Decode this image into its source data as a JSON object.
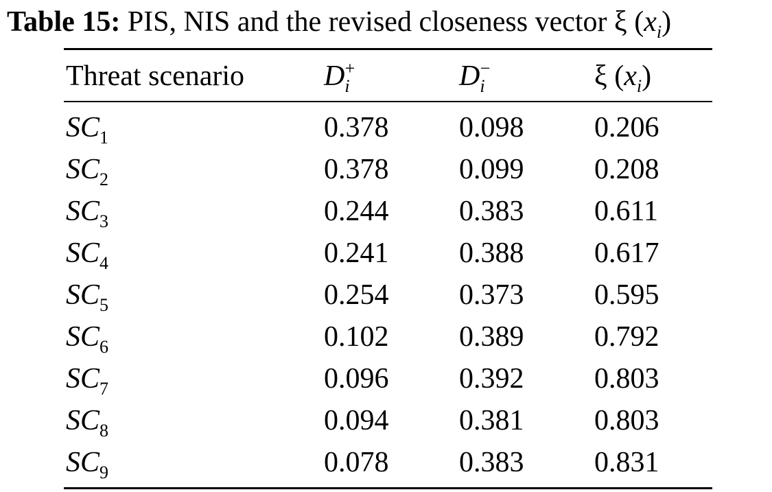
{
  "caption": {
    "label": "Table 15:",
    "text": "PIS, NIS and the revised closeness vector",
    "symbol": "ξ",
    "paren_open": "(",
    "var": "x",
    "var_sub": "i",
    "paren_close": ")"
  },
  "table": {
    "headers": {
      "scenario": "Threat scenario",
      "d_plus_base": "D",
      "d_plus_sub": "i",
      "d_plus_sup": "+",
      "d_minus_base": "D",
      "d_minus_sub": "i",
      "d_minus_sup": "−",
      "xi_symbol": "ξ",
      "xi_paren_open": "(",
      "xi_var": "x",
      "xi_var_sub": "i",
      "xi_paren_close": ")"
    },
    "rows": [
      {
        "sc": "SC",
        "sc_sub": "1",
        "d_plus": "0.378",
        "d_minus": "0.098",
        "xi": "0.206"
      },
      {
        "sc": "SC",
        "sc_sub": "2",
        "d_plus": "0.378",
        "d_minus": "0.099",
        "xi": "0.208"
      },
      {
        "sc": "SC",
        "sc_sub": "3",
        "d_plus": "0.244",
        "d_minus": "0.383",
        "xi": "0.611"
      },
      {
        "sc": "SC",
        "sc_sub": "4",
        "d_plus": "0.241",
        "d_minus": "0.388",
        "xi": "0.617"
      },
      {
        "sc": "SC",
        "sc_sub": "5",
        "d_plus": "0.254",
        "d_minus": "0.373",
        "xi": "0.595"
      },
      {
        "sc": "SC",
        "sc_sub": "6",
        "d_plus": "0.102",
        "d_minus": "0.389",
        "xi": "0.792"
      },
      {
        "sc": "SC",
        "sc_sub": "7",
        "d_plus": "0.096",
        "d_minus": "0.392",
        "xi": "0.803"
      },
      {
        "sc": "SC",
        "sc_sub": "8",
        "d_plus": "0.094",
        "d_minus": "0.381",
        "xi": "0.803"
      },
      {
        "sc": "SC",
        "sc_sub": "9",
        "d_plus": "0.078",
        "d_minus": "0.383",
        "xi": "0.831"
      }
    ]
  }
}
